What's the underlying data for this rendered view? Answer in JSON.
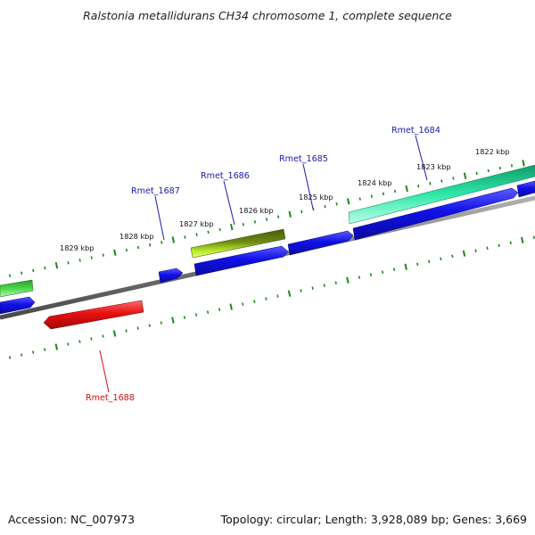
{
  "title": "Ralstonia metallidurans CH34 chromosome 1, complete sequence",
  "footer": {
    "accession": "Accession: NC_007973",
    "summary": "Topology: circular; Length: 3,928,089 bp; Genes: 3,669"
  },
  "colors": {
    "backbone": "#8a8a8a",
    "tick": "#1a8a1a",
    "forward_gene": "#1a1ae0",
    "reverse_gene": "#e01010",
    "green_gene": "#3cc83c",
    "teal_gene": "#2ee0a8",
    "olive_gene": "#6a7a10",
    "label_forward": "#1a1ab0",
    "label_reverse": "#d01010"
  },
  "scale_labels": [
    "1829 kbp",
    "1828 kbp",
    "1827 kbp",
    "1826 kbp",
    "1825 kbp",
    "1824 kbp",
    "1823 kbp",
    "1822 kbp"
  ],
  "gene_labels": [
    {
      "text": "Rmet_1684",
      "strand": "forward"
    },
    {
      "text": "Rmet_1685",
      "strand": "forward"
    },
    {
      "text": "Rmet_1686",
      "strand": "forward"
    },
    {
      "text": "Rmet_1687",
      "strand": "forward"
    },
    {
      "text": "Rmet_1688",
      "strand": "reverse"
    }
  ]
}
